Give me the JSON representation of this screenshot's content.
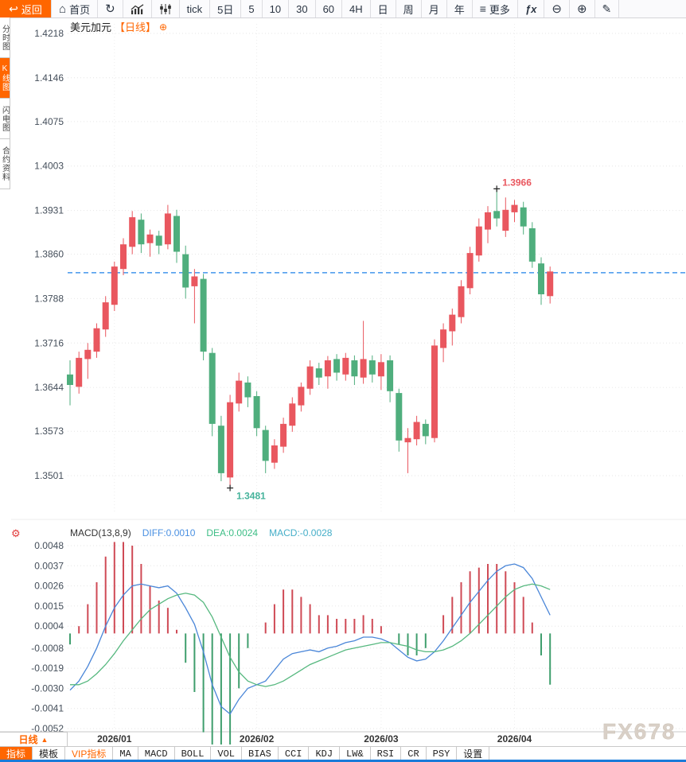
{
  "toolbar": {
    "items": [
      {
        "name": "back-button",
        "label": "返回",
        "icon": "back-arrow",
        "accent": true
      },
      {
        "name": "home-button",
        "label": "首页",
        "icon": "home"
      },
      {
        "name": "refresh-button",
        "label": "",
        "icon": "refresh"
      },
      {
        "name": "line-chart-button",
        "label": "",
        "icon": "line-chart"
      },
      {
        "name": "candlestick-button",
        "label": "",
        "icon": "candlestick"
      },
      {
        "name": "interval-tick",
        "label": "tick"
      },
      {
        "name": "interval-5d",
        "label": "5日"
      },
      {
        "name": "interval-5",
        "label": "5"
      },
      {
        "name": "interval-10",
        "label": "10"
      },
      {
        "name": "interval-30",
        "label": "30"
      },
      {
        "name": "interval-60",
        "label": "60"
      },
      {
        "name": "interval-4h",
        "label": "4H"
      },
      {
        "name": "interval-day",
        "label": "日"
      },
      {
        "name": "interval-week",
        "label": "周"
      },
      {
        "name": "interval-month",
        "label": "月"
      },
      {
        "name": "interval-year",
        "label": "年"
      },
      {
        "name": "more-button",
        "label": "更多",
        "icon": "menu"
      },
      {
        "name": "fx-indicators-button",
        "label": "",
        "icon": "fx"
      },
      {
        "name": "zoom-out-button",
        "label": "",
        "icon": "zoom-out"
      },
      {
        "name": "zoom-in-button",
        "label": "",
        "icon": "zoom-in"
      },
      {
        "name": "draw-button",
        "label": "",
        "icon": "draw-pencil"
      }
    ]
  },
  "side_tabs": {
    "items": [
      {
        "name": "side-tab-time-chart",
        "label": "分时图",
        "active": false
      },
      {
        "name": "side-tab-kline-chart",
        "label": "K线图",
        "active": true
      },
      {
        "name": "side-tab-lightning-chart",
        "label": "闪电图",
        "active": false
      },
      {
        "name": "side-tab-contract-info",
        "label": "合约资料",
        "active": false
      }
    ]
  },
  "chart_header": {
    "symbol": "美元加元",
    "period_tag": "【日线】",
    "plus_icon": "⊕"
  },
  "period_selector": {
    "label": "日线",
    "arrow": "▲"
  },
  "watermark": "FX678",
  "bottom_toolbar": {
    "items": [
      {
        "name": "indicator-tab",
        "label": "指标",
        "active": true
      },
      {
        "name": "template-tab",
        "label": "模板"
      },
      {
        "name": "vip-indicator-tab",
        "label": "VIP指标",
        "vip": true
      },
      {
        "name": "indicator-ma",
        "label": "MA",
        "mono": true
      },
      {
        "name": "indicator-macd",
        "label": "MACD",
        "mono": true
      },
      {
        "name": "indicator-boll",
        "label": "BOLL",
        "mono": true
      },
      {
        "name": "indicator-vol",
        "label": "VOL",
        "mono": true
      },
      {
        "name": "indicator-bias",
        "label": "BIAS",
        "mono": true
      },
      {
        "name": "indicator-cci",
        "label": "CCI",
        "mono": true
      },
      {
        "name": "indicator-kdj",
        "label": "KDJ",
        "mono": true
      },
      {
        "name": "indicator-lw",
        "label": "LW&",
        "mono": true
      },
      {
        "name": "indicator-rsi",
        "label": "RSI",
        "mono": true
      },
      {
        "name": "indicator-cr",
        "label": "CR",
        "mono": true
      },
      {
        "name": "indicator-psy",
        "label": "PSY",
        "mono": true
      },
      {
        "name": "settings-button",
        "label": "设置"
      }
    ]
  },
  "colors": {
    "accent_orange": "#ff6600",
    "candle_up": "#e9575f",
    "candle_down": "#4fae7d",
    "price_line": "#1e80e8",
    "grid": "#e6e6e6",
    "diff_line": "#4a86d8",
    "dea_line": "#56b87f",
    "hist_up": "#cf4a55",
    "hist_down": "#3f9e6d",
    "diff_text": "#4a90e2",
    "dea_text": "#3cbd85",
    "macd_text": "#45aec8",
    "high_label": "#e9575f",
    "low_label": "#45b39b",
    "axis_text": "#444e5a",
    "watermark_color": "#d9d0c7"
  },
  "chart_data": [
    {
      "type": "candlestick",
      "title": "美元加元 日线",
      "y_ticks": [
        "1.4218",
        "1.4146",
        "1.4075",
        "1.4003",
        "1.3931",
        "1.3860",
        "1.3788",
        "1.3716",
        "1.3644",
        "1.3573",
        "1.3501"
      ],
      "x_ticks": [
        {
          "label": "2026/01",
          "index": 5
        },
        {
          "label": "2026/02",
          "index": 21
        },
        {
          "label": "2026/03",
          "index": 35
        },
        {
          "label": "2026/04",
          "index": 50
        }
      ],
      "last_price_line": 1.383,
      "annotations": {
        "high": {
          "label": "1.3966",
          "index": 48,
          "value": 1.3966
        },
        "low": {
          "label": "1.3481",
          "index": 18,
          "value": 1.3481
        }
      },
      "candles": [
        [
          1.3665,
          1.3688,
          1.3615,
          1.3648
        ],
        [
          1.3645,
          1.3702,
          1.3634,
          1.3692
        ],
        [
          1.369,
          1.3716,
          1.3658,
          1.3705
        ],
        [
          1.3702,
          1.3748,
          1.3692,
          1.374
        ],
        [
          1.3738,
          1.3792,
          1.3726,
          1.3782
        ],
        [
          1.3778,
          1.3848,
          1.3768,
          1.384
        ],
        [
          1.3836,
          1.3886,
          1.3826,
          1.3876
        ],
        [
          1.3872,
          1.393,
          1.386,
          1.392
        ],
        [
          1.3916,
          1.3926,
          1.3862,
          1.3876
        ],
        [
          1.3878,
          1.39,
          1.3856,
          1.3892
        ],
        [
          1.389,
          1.3898,
          1.386,
          1.3874
        ],
        [
          1.3876,
          1.394,
          1.3868,
          1.3926
        ],
        [
          1.3922,
          1.3932,
          1.3846,
          1.3864
        ],
        [
          1.386,
          1.3874,
          1.3788,
          1.3806
        ],
        [
          1.3808,
          1.3836,
          1.3748,
          1.3824
        ],
        [
          1.382,
          1.3828,
          1.3688,
          1.3702
        ],
        [
          1.37,
          1.3708,
          1.3565,
          1.3585
        ],
        [
          1.3582,
          1.3598,
          1.3492,
          1.3505
        ],
        [
          1.3498,
          1.3632,
          1.3481,
          1.362
        ],
        [
          1.3618,
          1.3668,
          1.3605,
          1.3655
        ],
        [
          1.3652,
          1.3662,
          1.3612,
          1.3628
        ],
        [
          1.363,
          1.3638,
          1.3565,
          1.3578
        ],
        [
          1.3575,
          1.3582,
          1.3505,
          1.3525
        ],
        [
          1.3522,
          1.356,
          1.3512,
          1.355
        ],
        [
          1.3548,
          1.3595,
          1.3538,
          1.3585
        ],
        [
          1.3582,
          1.3628,
          1.3572,
          1.3618
        ],
        [
          1.3615,
          1.3652,
          1.3605,
          1.3645
        ],
        [
          1.3642,
          1.3688,
          1.3632,
          1.3678
        ],
        [
          1.3675,
          1.3684,
          1.3648,
          1.366
        ],
        [
          1.3662,
          1.3695,
          1.3642,
          1.3688
        ],
        [
          1.369,
          1.3698,
          1.3655,
          1.3668
        ],
        [
          1.3665,
          1.37,
          1.3655,
          1.3692
        ],
        [
          1.3688,
          1.3696,
          1.3648,
          1.3662
        ],
        [
          1.366,
          1.3752,
          1.365,
          1.369
        ],
        [
          1.3688,
          1.3696,
          1.3652,
          1.3665
        ],
        [
          1.3662,
          1.3698,
          1.364,
          1.3685
        ],
        [
          1.3688,
          1.3696,
          1.362,
          1.3638
        ],
        [
          1.3635,
          1.3642,
          1.354,
          1.3558
        ],
        [
          1.3555,
          1.3578,
          1.3505,
          1.3562
        ],
        [
          1.356,
          1.3598,
          1.355,
          1.3588
        ],
        [
          1.3585,
          1.3592,
          1.3552,
          1.3565
        ],
        [
          1.3562,
          1.3722,
          1.3555,
          1.3712
        ],
        [
          1.3708,
          1.3748,
          1.3685,
          1.3738
        ],
        [
          1.3735,
          1.3772,
          1.3712,
          1.3762
        ],
        [
          1.3758,
          1.3818,
          1.3748,
          1.3808
        ],
        [
          1.3805,
          1.3872,
          1.3795,
          1.3862
        ],
        [
          1.3858,
          1.3918,
          1.3848,
          1.3905
        ],
        [
          1.39,
          1.3938,
          1.3878,
          1.3928
        ],
        [
          1.393,
          1.3966,
          1.3905,
          1.3918
        ],
        [
          1.3898,
          1.3952,
          1.3888,
          1.3932
        ],
        [
          1.3928,
          1.3948,
          1.3912,
          1.394
        ],
        [
          1.3936,
          1.3945,
          1.3892,
          1.3905
        ],
        [
          1.3902,
          1.3912,
          1.3838,
          1.3848
        ],
        [
          1.3845,
          1.3855,
          1.3778,
          1.3795
        ],
        [
          1.3792,
          1.384,
          1.378,
          1.3832
        ]
      ]
    },
    {
      "type": "macd",
      "title": "MACD(13,8,9)",
      "legend": [
        {
          "name": "diff-value",
          "label": "DIFF:0.0010"
        },
        {
          "name": "dea-value",
          "label": "DEA:0.0024"
        },
        {
          "name": "macd-value",
          "label": "MACD:-0.0028"
        }
      ],
      "y_ticks": [
        "0.0048",
        "0.0037",
        "0.0026",
        "0.0015",
        "0.0004",
        "-0.0008",
        "-0.0019",
        "-0.0030",
        "-0.0041",
        "-0.0052"
      ],
      "hist_formula": "2*(diff-dea)",
      "diff": [
        -0.0031,
        -0.0026,
        -0.0018,
        -0.0008,
        0.0004,
        0.0014,
        0.0021,
        0.0026,
        0.0027,
        0.0026,
        0.0025,
        0.0026,
        0.0022,
        0.0014,
        0.0005,
        -0.001,
        -0.0028,
        -0.004,
        -0.0044,
        -0.0036,
        -0.003,
        -0.0028,
        -0.0026,
        -0.002,
        -0.0014,
        -0.0011,
        -0.001,
        -0.0009,
        -0.001,
        -0.0008,
        -0.0007,
        -0.0005,
        -0.0004,
        -0.0002,
        -0.0002,
        -0.0003,
        -0.0005,
        -0.0009,
        -0.0013,
        -0.0015,
        -0.0014,
        -0.001,
        -0.0004,
        0.0003,
        0.001,
        0.0017,
        0.0023,
        0.0029,
        0.0034,
        0.0037,
        0.0038,
        0.0036,
        0.003,
        0.002,
        0.001
      ],
      "dea": [
        -0.0028,
        -0.0028,
        -0.0026,
        -0.0022,
        -0.0017,
        -0.0011,
        -0.0004,
        0.0002,
        0.0008,
        0.0013,
        0.0016,
        0.0019,
        0.0021,
        0.0022,
        0.0021,
        0.0017,
        0.0009,
        -0.0002,
        -0.0013,
        -0.0021,
        -0.0026,
        -0.0028,
        -0.0029,
        -0.0028,
        -0.0026,
        -0.0023,
        -0.002,
        -0.0017,
        -0.0015,
        -0.0013,
        -0.0011,
        -0.0009,
        -0.0008,
        -0.0007,
        -0.0006,
        -0.0005,
        -0.0005,
        -0.0006,
        -0.0007,
        -0.0009,
        -0.001,
        -0.001,
        -0.0009,
        -0.0007,
        -0.0004,
        0.0,
        0.0005,
        0.001,
        0.0015,
        0.002,
        0.0024,
        0.0026,
        0.0027,
        0.0026,
        0.0024
      ]
    }
  ]
}
